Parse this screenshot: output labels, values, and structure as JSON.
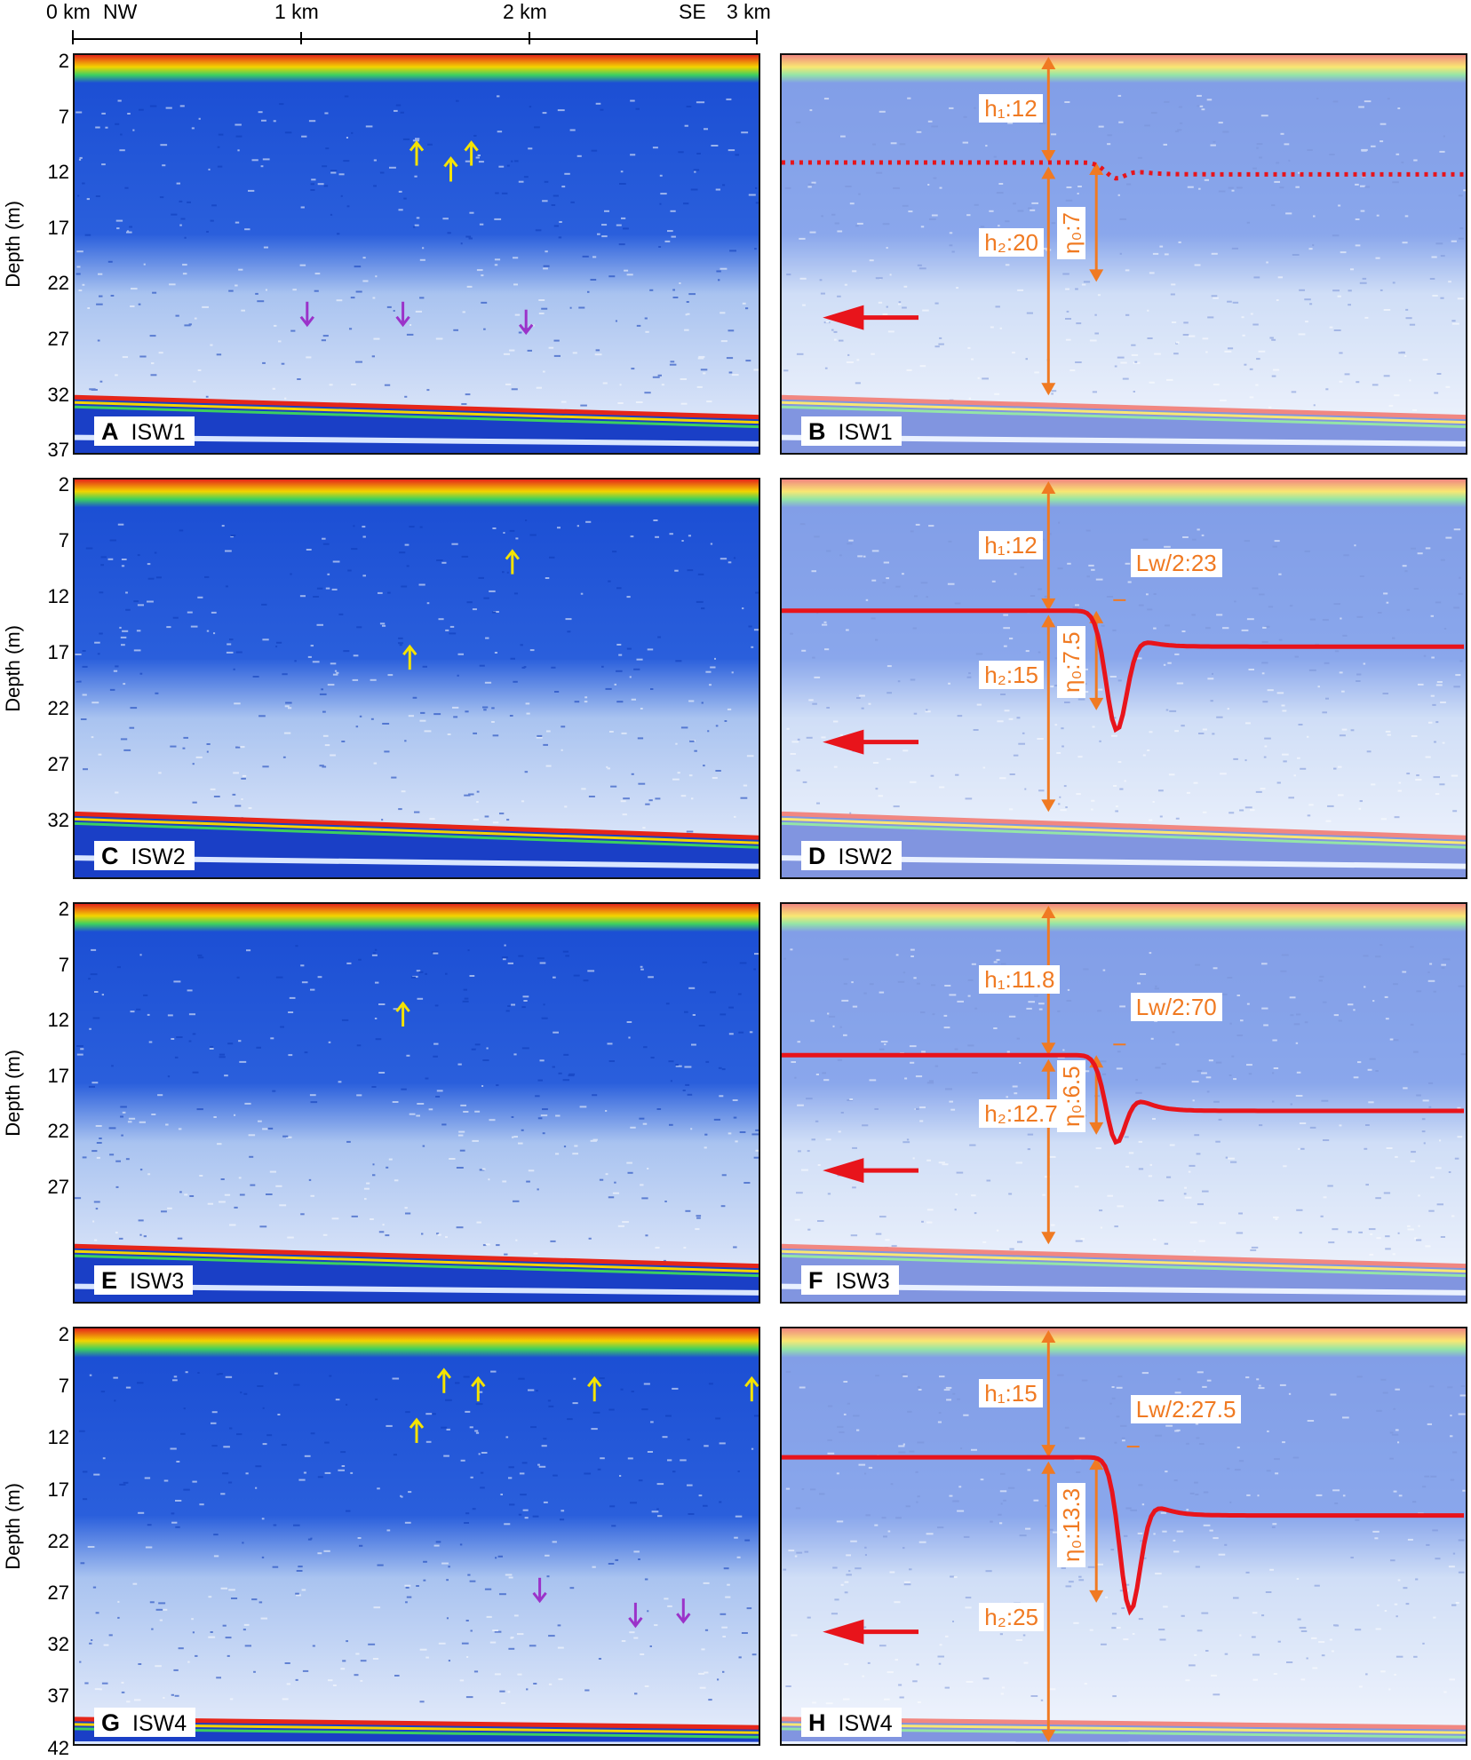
{
  "scale": {
    "ticks": [
      "0 km",
      "1 km",
      "2 km",
      "3 km"
    ],
    "nw": "NW",
    "se": "SE"
  },
  "ylabel": "Depth (m)",
  "rows": [
    {
      "ticks": [
        "2",
        "7",
        "12",
        "17",
        "22",
        "27",
        "32",
        "37"
      ],
      "left": {
        "letter": "A",
        "name": "ISW1"
      },
      "right": {
        "letter": "B",
        "name": "ISW1"
      },
      "annotations": {
        "h1": "h₁:12",
        "h2": "h₂:20",
        "eta": "η₀:7"
      }
    },
    {
      "ticks": [
        "2",
        "7",
        "12",
        "17",
        "22",
        "27",
        "32"
      ],
      "left": {
        "letter": "C",
        "name": "ISW2"
      },
      "right": {
        "letter": "D",
        "name": "ISW2"
      },
      "annotations": {
        "h1": "h₁:12",
        "h2": "h₂:15",
        "eta": "η₀:7.5",
        "lw": "Lᴡ/2:23"
      }
    },
    {
      "ticks": [
        "2",
        "7",
        "12",
        "17",
        "22",
        "27"
      ],
      "left": {
        "letter": "E",
        "name": "ISW3"
      },
      "right": {
        "letter": "F",
        "name": "ISW3"
      },
      "annotations": {
        "h1": "h₁:11.8",
        "h2": "h₂:12.7",
        "eta": "η₀:6.5",
        "lw": "Lᴡ/2:70"
      }
    },
    {
      "ticks": [
        "2",
        "7",
        "12",
        "17",
        "22",
        "27",
        "32",
        "37",
        "42"
      ],
      "left": {
        "letter": "G",
        "name": "ISW4"
      },
      "right": {
        "letter": "H",
        "name": "ISW4"
      },
      "annotations": {
        "h1": "h₁:15",
        "h2": "h₂:25",
        "eta": "η₀:13.3",
        "lw": "Lᴡ/2:27.5"
      }
    }
  ],
  "colors": {
    "arrow_orange": "#f07a22",
    "wave_red": "#e8141b",
    "marker_yellow": "#f4e300",
    "marker_purple": "#9b33c9",
    "echo_blue": "#1c4fd4"
  }
}
